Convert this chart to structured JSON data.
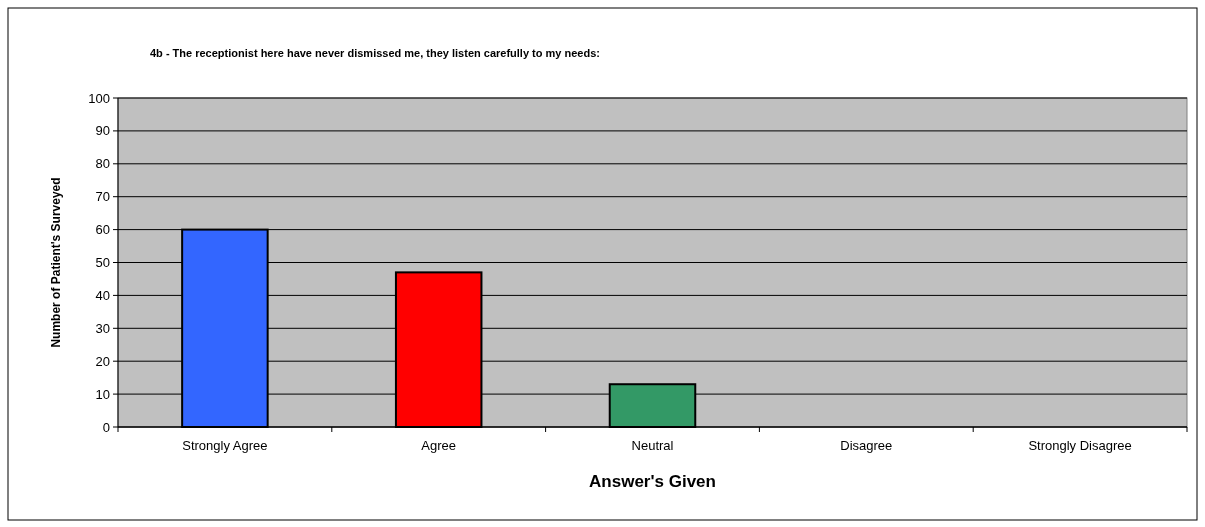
{
  "chart_data": {
    "type": "bar",
    "title": "4b - The receptionist here have never dismissed me, they listen carefully to my needs:",
    "xlabel": "Answer's Given",
    "ylabel": "Number of Patient's Surveyed",
    "categories": [
      "Strongly Agree",
      "Agree",
      "Neutral",
      "Disagree",
      "Strongly Disagree"
    ],
    "values": [
      60,
      47,
      13,
      0,
      0
    ],
    "colors": [
      "#3366ff",
      "#ff0000",
      "#339966",
      "#808080",
      "#808080"
    ],
    "ylim": [
      0,
      100
    ],
    "yticks": [
      0,
      10,
      20,
      30,
      40,
      50,
      60,
      70,
      80,
      90,
      100
    ],
    "grid": "y"
  }
}
